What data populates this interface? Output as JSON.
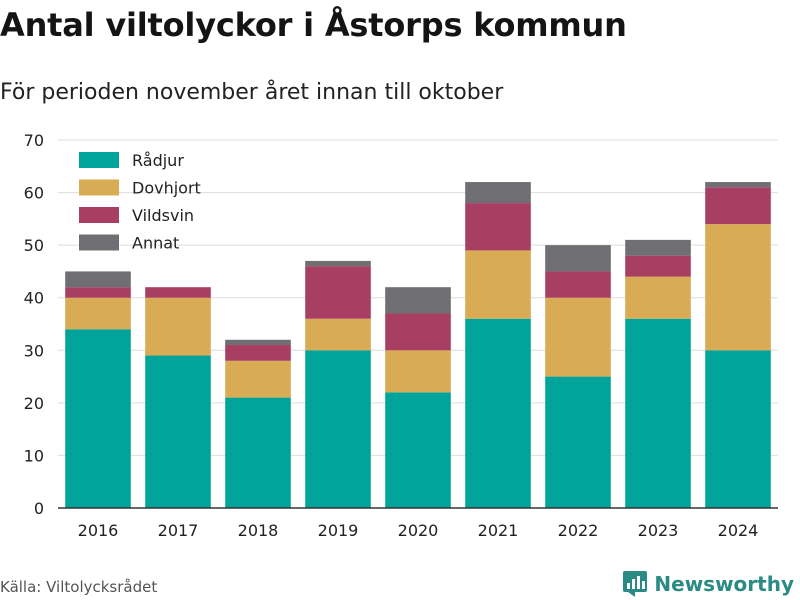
{
  "title": "Antal viltolyckor i Åstorps kommun",
  "subtitle": "För perioden november året innan till oktober",
  "source": "Källa: Viltolycksrådet",
  "brand": "Newsworthy",
  "colors": {
    "radjur": "#00a49a",
    "dovhjort": "#d9ab55",
    "vildsvin": "#a93e63",
    "annat": "#6e6e73",
    "grid": "#dddddd",
    "axis": "#333333",
    "brand": "#2a8a84"
  },
  "chart_data": {
    "type": "bar",
    "stacked": true,
    "categories": [
      "2016",
      "2017",
      "2018",
      "2019",
      "2020",
      "2021",
      "2022",
      "2023",
      "2024"
    ],
    "series": [
      {
        "name": "Rådjur",
        "color": "#00a49a",
        "values": [
          34,
          29,
          21,
          30,
          22,
          36,
          25,
          36,
          30
        ]
      },
      {
        "name": "Dovhjort",
        "color": "#d9ab55",
        "values": [
          6,
          11,
          7,
          6,
          8,
          13,
          15,
          8,
          24
        ]
      },
      {
        "name": "Vildsvin",
        "color": "#a93e63",
        "values": [
          2,
          2,
          3,
          10,
          7,
          9,
          5,
          4,
          7
        ]
      },
      {
        "name": "Annat",
        "color": "#6e6e73",
        "values": [
          3,
          0,
          1,
          1,
          5,
          4,
          5,
          3,
          1
        ]
      }
    ],
    "ylim": [
      0,
      70
    ],
    "yticks": [
      "0",
      "10",
      "20",
      "30",
      "40",
      "50",
      "60",
      "70"
    ],
    "grid": true,
    "legend_position": "top-left"
  }
}
